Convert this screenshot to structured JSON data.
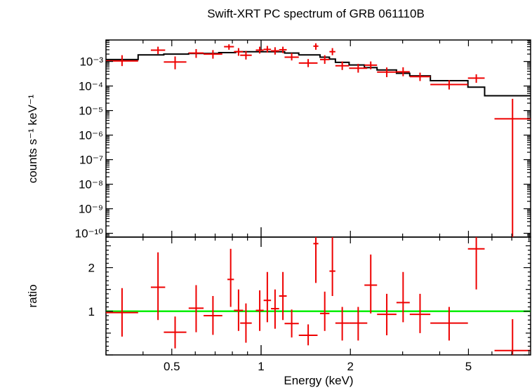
{
  "chart_data": [
    {
      "panel": "spectrum",
      "type": "scatter",
      "title": "Swift-XRT PC spectrum of GRB 061110B",
      "xlabel": "",
      "ylabel": "counts s⁻¹ keV⁻¹",
      "xscale": "log",
      "yscale": "log",
      "xlim": [
        0.3,
        8.1
      ],
      "ylim": [
        7e-11,
        0.0075
      ],
      "y_tick_labels": [
        "10⁻³",
        "10⁻⁴",
        "10⁻⁵",
        "10⁻⁶",
        "10⁻⁷",
        "10⁻⁸",
        "10⁻⁹",
        "10⁻¹⁰"
      ],
      "y_tick_values": [
        0.001,
        0.0001,
        1e-05,
        1e-06,
        1e-07,
        1e-08,
        1e-09,
        1e-10
      ],
      "colors": {
        "data": "#ee0000",
        "model": "#000000"
      },
      "series": [
        {
          "style": "crosses",
          "points": [
            {
              "xlo": 0.3,
              "xhi": 0.385,
              "y": 0.00105,
              "ylo": 0.00065,
              "yhi": 0.0018
            },
            {
              "xlo": 0.425,
              "xhi": 0.475,
              "y": 0.0029,
              "ylo": 0.002,
              "yhi": 0.004
            },
            {
              "xlo": 0.47,
              "xhi": 0.56,
              "y": 0.00095,
              "ylo": 0.00048,
              "yhi": 0.0016
            },
            {
              "xlo": 0.57,
              "xhi": 0.64,
              "y": 0.0022,
              "ylo": 0.0014,
              "yhi": 0.0032
            },
            {
              "xlo": 0.64,
              "xhi": 0.74,
              "y": 0.002,
              "ylo": 0.0013,
              "yhi": 0.0029
            },
            {
              "xlo": 0.75,
              "xhi": 0.81,
              "y": 0.004,
              "ylo": 0.003,
              "yhi": 0.005
            },
            {
              "xlo": 0.81,
              "xhi": 0.87,
              "y": 0.0025,
              "ylo": 0.0017,
              "yhi": 0.0035
            },
            {
              "xlo": 0.85,
              "xhi": 0.93,
              "y": 0.0018,
              "ylo": 0.0012,
              "yhi": 0.0027
            },
            {
              "xlo": 0.96,
              "xhi": 1.02,
              "y": 0.0029,
              "ylo": 0.0021,
              "yhi": 0.004
            },
            {
              "xlo": 1.02,
              "xhi": 1.08,
              "y": 0.0031,
              "ylo": 0.0023,
              "yhi": 0.0043
            },
            {
              "xlo": 1.08,
              "xhi": 1.15,
              "y": 0.0027,
              "ylo": 0.0019,
              "yhi": 0.0038
            },
            {
              "xlo": 1.15,
              "xhi": 1.22,
              "y": 0.003,
              "ylo": 0.0022,
              "yhi": 0.004
            },
            {
              "xlo": 1.2,
              "xhi": 1.34,
              "y": 0.0015,
              "ylo": 0.0011,
              "yhi": 0.0022
            },
            {
              "xlo": 1.34,
              "xhi": 1.55,
              "y": 0.00086,
              "ylo": 0.00059,
              "yhi": 0.00125
            },
            {
              "xlo": 1.5,
              "xhi": 1.56,
              "y": 0.0042,
              "ylo": 0.003,
              "yhi": 0.0055
            },
            {
              "xlo": 1.58,
              "xhi": 1.7,
              "y": 0.0012,
              "ylo": 0.0008,
              "yhi": 0.0018
            },
            {
              "xlo": 1.7,
              "xhi": 1.78,
              "y": 0.0025,
              "ylo": 0.0018,
              "yhi": 0.0035
            },
            {
              "xlo": 1.78,
              "xhi": 1.98,
              "y": 0.00067,
              "ylo": 0.00045,
              "yhi": 0.001
            },
            {
              "xlo": 1.98,
              "xhi": 2.28,
              "y": 0.00053,
              "ylo": 0.00035,
              "yhi": 0.0008
            },
            {
              "xlo": 2.23,
              "xhi": 2.46,
              "y": 0.00071,
              "ylo": 0.00048,
              "yhi": 0.001
            },
            {
              "xlo": 2.46,
              "xhi": 2.86,
              "y": 0.00037,
              "ylo": 0.00023,
              "yhi": 0.00057
            },
            {
              "xlo": 2.86,
              "xhi": 3.17,
              "y": 0.00038,
              "ylo": 0.00025,
              "yhi": 0.00058
            },
            {
              "xlo": 3.17,
              "xhi": 3.72,
              "y": 0.00024,
              "ylo": 0.00016,
              "yhi": 0.00035
            },
            {
              "xlo": 3.72,
              "xhi": 4.98,
              "y": 0.000115,
              "ylo": 7.2e-05,
              "yhi": 0.000175
            },
            {
              "xlo": 4.98,
              "xhi": 5.67,
              "y": 0.00021,
              "ylo": 0.000135,
              "yhi": 0.0003
            },
            {
              "xlo": 6.12,
              "xhi": 8.1,
              "y": 4.6e-06,
              "ylo": 7e-11,
              "yhi": 3e-05
            }
          ]
        },
        {
          "style": "model-step",
          "steps": [
            {
              "xlo": 0.3,
              "xhi": 0.385,
              "y": 0.0012
            },
            {
              "xlo": 0.385,
              "xhi": 0.47,
              "y": 0.00185
            },
            {
              "xlo": 0.47,
              "xhi": 0.57,
              "y": 0.002
            },
            {
              "xlo": 0.57,
              "xhi": 0.72,
              "y": 0.0021
            },
            {
              "xlo": 0.72,
              "xhi": 0.82,
              "y": 0.0023
            },
            {
              "xlo": 0.82,
              "xhi": 0.96,
              "y": 0.0025
            },
            {
              "xlo": 0.96,
              "xhi": 1.2,
              "y": 0.0025
            },
            {
              "xlo": 1.2,
              "xhi": 1.34,
              "y": 0.0022
            },
            {
              "xlo": 1.34,
              "xhi": 1.58,
              "y": 0.00185
            },
            {
              "xlo": 1.58,
              "xhi": 1.7,
              "y": 0.0015
            },
            {
              "xlo": 1.7,
              "xhi": 1.78,
              "y": 0.00125
            },
            {
              "xlo": 1.78,
              "xhi": 1.98,
              "y": 0.00092
            },
            {
              "xlo": 1.98,
              "xhi": 2.23,
              "y": 0.00072
            },
            {
              "xlo": 2.23,
              "xhi": 2.46,
              "y": 0.00056
            },
            {
              "xlo": 2.46,
              "xhi": 2.86,
              "y": 0.00045
            },
            {
              "xlo": 2.86,
              "xhi": 3.17,
              "y": 0.00033
            },
            {
              "xlo": 3.17,
              "xhi": 3.72,
              "y": 0.00026
            },
            {
              "xlo": 3.72,
              "xhi": 4.98,
              "y": 0.000165
            },
            {
              "xlo": 4.98,
              "xhi": 5.67,
              "y": 9e-05
            },
            {
              "xlo": 5.67,
              "xhi": 8.1,
              "y": 4e-05
            }
          ]
        }
      ]
    },
    {
      "panel": "ratio",
      "type": "scatter",
      "xlabel": "Energy (keV)",
      "ylabel": "ratio",
      "xscale": "log",
      "yscale": "linear",
      "xlim": [
        0.3,
        8.1
      ],
      "ylim": [
        0.0,
        2.7
      ],
      "x_tick_labels": [
        "0.5",
        "1",
        "2",
        "5"
      ],
      "x_tick_values": [
        0.5,
        1,
        2,
        5
      ],
      "y_tick_labels": [
        "1",
        "2"
      ],
      "y_tick_values": [
        1,
        2
      ],
      "reference_line": {
        "y": 1,
        "color": "#00ee00"
      },
      "colors": {
        "data": "#ee0000"
      },
      "series": [
        {
          "style": "crosses",
          "points": [
            {
              "xlo": 0.3,
              "xhi": 0.385,
              "y": 0.97,
              "ylo": 0.42,
              "yhi": 1.53
            },
            {
              "xlo": 0.425,
              "xhi": 0.475,
              "y": 1.55,
              "ylo": 0.8,
              "yhi": 2.35
            },
            {
              "xlo": 0.47,
              "xhi": 0.56,
              "y": 0.52,
              "ylo": 0.15,
              "yhi": 0.88
            },
            {
              "xlo": 0.57,
              "xhi": 0.64,
              "y": 1.07,
              "ylo": 0.52,
              "yhi": 1.6
            },
            {
              "xlo": 0.64,
              "xhi": 0.74,
              "y": 0.9,
              "ylo": 0.46,
              "yhi": 1.35
            },
            {
              "xlo": 0.77,
              "xhi": 0.81,
              "y": 1.73,
              "ylo": 1.1,
              "yhi": 2.43
            },
            {
              "xlo": 0.81,
              "xhi": 0.87,
              "y": 1.02,
              "ylo": 0.55,
              "yhi": 1.5
            },
            {
              "xlo": 0.85,
              "xhi": 0.93,
              "y": 0.73,
              "ylo": 0.28,
              "yhi": 1.18
            },
            {
              "xlo": 0.96,
              "xhi": 1.02,
              "y": 1.02,
              "ylo": 0.55,
              "yhi": 1.48
            },
            {
              "xlo": 1.02,
              "xhi": 1.08,
              "y": 1.25,
              "ylo": 0.75,
              "yhi": 1.9
            },
            {
              "xlo": 1.08,
              "xhi": 1.15,
              "y": 1.06,
              "ylo": 0.6,
              "yhi": 1.5
            },
            {
              "xlo": 1.15,
              "xhi": 1.22,
              "y": 1.35,
              "ylo": 0.8,
              "yhi": 1.9
            },
            {
              "xlo": 1.2,
              "xhi": 1.34,
              "y": 0.72,
              "ylo": 0.4,
              "yhi": 1.04
            },
            {
              "xlo": 1.34,
              "xhi": 1.55,
              "y": 0.45,
              "ylo": 0.22,
              "yhi": 0.7
            },
            {
              "xlo": 1.5,
              "xhi": 1.56,
              "y": 2.55,
              "ylo": 1.65,
              "yhi": 2.7
            },
            {
              "xlo": 1.58,
              "xhi": 1.7,
              "y": 0.95,
              "ylo": 0.55,
              "yhi": 1.45
            },
            {
              "xlo": 1.7,
              "xhi": 1.78,
              "y": 1.92,
              "ylo": 1.35,
              "yhi": 2.7
            },
            {
              "xlo": 1.78,
              "xhi": 1.98,
              "y": 0.73,
              "ylo": 0.33,
              "yhi": 1.1
            },
            {
              "xlo": 1.98,
              "xhi": 2.28,
              "y": 0.73,
              "ylo": 0.33,
              "yhi": 1.1
            },
            {
              "xlo": 2.23,
              "xhi": 2.46,
              "y": 1.6,
              "ylo": 0.95,
              "yhi": 2.3
            },
            {
              "xlo": 2.46,
              "xhi": 2.86,
              "y": 0.93,
              "ylo": 0.45,
              "yhi": 1.4
            },
            {
              "xlo": 2.86,
              "xhi": 3.17,
              "y": 1.2,
              "ylo": 0.75,
              "yhi": 1.9
            },
            {
              "xlo": 3.17,
              "xhi": 3.72,
              "y": 0.93,
              "ylo": 0.5,
              "yhi": 1.4
            },
            {
              "xlo": 3.72,
              "xhi": 4.98,
              "y": 0.73,
              "ylo": 0.33,
              "yhi": 1.1
            },
            {
              "xlo": 4.98,
              "xhi": 5.67,
              "y": 2.43,
              "ylo": 1.5,
              "yhi": 2.7
            },
            {
              "xlo": 6.12,
              "xhi": 8.1,
              "y": 0.1,
              "ylo": 0.0,
              "yhi": 0.82
            }
          ]
        }
      ]
    }
  ]
}
